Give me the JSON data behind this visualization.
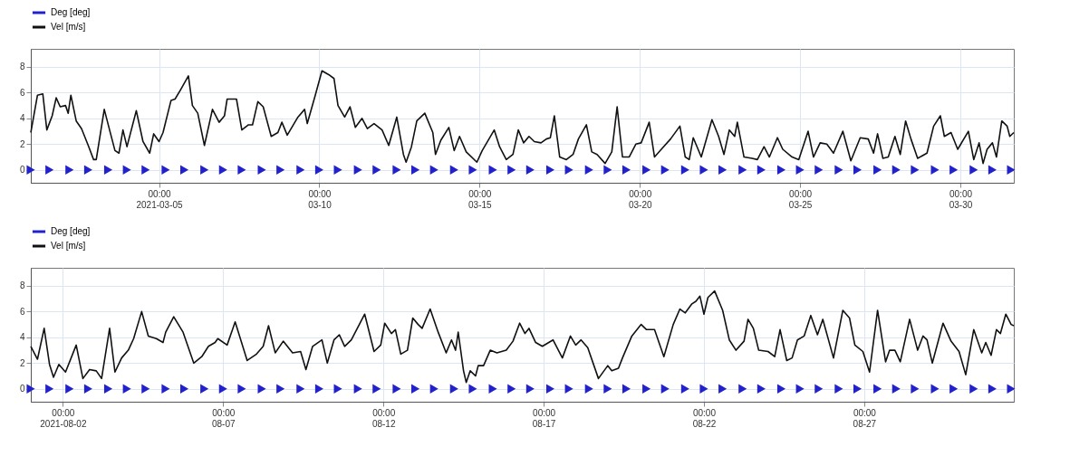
{
  "chart_data": [
    {
      "type": "line",
      "legend": "top left",
      "grid": true,
      "xlim": [
        "2021-03-01T00:00",
        "2021-03-31T16:00"
      ],
      "xticks": [
        {
          "value": "2021-03-05T00:00",
          "label": "00:00\n2021-03-05"
        },
        {
          "value": "2021-03-10T00:00",
          "label": "00:00\n03-10"
        },
        {
          "value": "2021-03-15T00:00",
          "label": "00:00\n03-15"
        },
        {
          "value": "2021-03-20T00:00",
          "label": "00:00\n03-20"
        },
        {
          "value": "2021-03-25T00:00",
          "label": "00:00\n03-25"
        },
        {
          "value": "2021-03-30T00:00",
          "label": "00:00\n03-30"
        }
      ],
      "ylim": [
        -1,
        9.4
      ],
      "yticks": [
        0,
        2,
        4,
        6,
        8
      ],
      "series": [
        {
          "name": "Deg [deg]",
          "type": "scatter",
          "marker": "triangle",
          "color": "#2222cc",
          "x": [
            "2021-03-01T00:00",
            "2021-03-01T14:00",
            "2021-03-02T05:00",
            "2021-03-02T19:00",
            "2021-03-03T10:00",
            "2021-03-04T00:00",
            "2021-03-04T14:00",
            "2021-03-05T05:00",
            "2021-03-05T19:00",
            "2021-03-06T10:00",
            "2021-03-07T00:00",
            "2021-03-07T14:00",
            "2021-03-08T05:00",
            "2021-03-08T19:00",
            "2021-03-09T10:00",
            "2021-03-10T00:00",
            "2021-03-10T14:00",
            "2021-03-11T05:00",
            "2021-03-11T19:00",
            "2021-03-12T10:00",
            "2021-03-13T00:00",
            "2021-03-13T14:00",
            "2021-03-14T05:00",
            "2021-03-14T19:00",
            "2021-03-15T10:00",
            "2021-03-16T00:00",
            "2021-03-16T14:00",
            "2021-03-17T05:00",
            "2021-03-17T19:00",
            "2021-03-18T10:00",
            "2021-03-19T00:00",
            "2021-03-19T14:00",
            "2021-03-20T05:00",
            "2021-03-20T19:00",
            "2021-03-21T10:00",
            "2021-03-22T00:00",
            "2021-03-22T14:00",
            "2021-03-23T05:00",
            "2021-03-23T19:00",
            "2021-03-24T10:00",
            "2021-03-25T00:00",
            "2021-03-25T14:00",
            "2021-03-26T05:00",
            "2021-03-26T19:00",
            "2021-03-27T10:00",
            "2021-03-28T00:00",
            "2021-03-28T14:00",
            "2021-03-29T05:00",
            "2021-03-29T19:00",
            "2021-03-30T10:00",
            "2021-03-31T00:00",
            "2021-03-31T14:00"
          ],
          "values": [
            0,
            0,
            0,
            0,
            0,
            0,
            0,
            0,
            0,
            0,
            0,
            0,
            0,
            0,
            0,
            0,
            0,
            0,
            0,
            0,
            0,
            0,
            0,
            0,
            0,
            0,
            0,
            0,
            0,
            0,
            0,
            0,
            0,
            0,
            0,
            0,
            0,
            0,
            0,
            0,
            0,
            0,
            0,
            0,
            0,
            0,
            0,
            0,
            0,
            0,
            0,
            0
          ]
        },
        {
          "name": "Vel [m/s]",
          "type": "line",
          "color": "#111111",
          "x": [
            "2021-03-01T00:00",
            "2021-03-01T05:00",
            "2021-03-01T09:00",
            "2021-03-01T12:00",
            "2021-03-01T16:00",
            "2021-03-01T19:00",
            "2021-03-01T22:00",
            "2021-03-02T02:00",
            "2021-03-02T04:00",
            "2021-03-02T06:00",
            "2021-03-02T10:00",
            "2021-03-02T14:00",
            "2021-03-02T19:00",
            "2021-03-02T23:00",
            "2021-03-03T01:00",
            "2021-03-03T07:00",
            "2021-03-03T12:00",
            "2021-03-03T15:00",
            "2021-03-03T18:00",
            "2021-03-03T21:00",
            "2021-03-04T00:00",
            "2021-03-04T07:00",
            "2021-03-04T12:00",
            "2021-03-04T17:00",
            "2021-03-04T20:00",
            "2021-03-05T00:00",
            "2021-03-05T03:00",
            "2021-03-05T09:00",
            "2021-03-05T12:00",
            "2021-03-05T16:00",
            "2021-03-05T22:00",
            "2021-03-06T01:00",
            "2021-03-06T05:00",
            "2021-03-06T10:00",
            "2021-03-06T16:00",
            "2021-03-06T21:00",
            "2021-03-07T01:00",
            "2021-03-07T03:00",
            "2021-03-07T10:00",
            "2021-03-07T14:00",
            "2021-03-07T19:00",
            "2021-03-07T22:00",
            "2021-03-08T02:00",
            "2021-03-08T06:00",
            "2021-03-08T12:00",
            "2021-03-08T17:00",
            "2021-03-08T20:00",
            "2021-03-09T00:00",
            "2021-03-09T08:00",
            "2021-03-09T13:00",
            "2021-03-09T15:00",
            "2021-03-09T21:00",
            "2021-03-10T02:00",
            "2021-03-10T07:00",
            "2021-03-10T11:00",
            "2021-03-10T14:00",
            "2021-03-10T19:00",
            "2021-03-10T23:00",
            "2021-03-11T03:00",
            "2021-03-11T08:00",
            "2021-03-11T12:00",
            "2021-03-11T17:00",
            "2021-03-11T23:00",
            "2021-03-12T04:00",
            "2021-03-12T10:00",
            "2021-03-12T15:00",
            "2021-03-12T17:00",
            "2021-03-12T21:00",
            "2021-03-13T01:00",
            "2021-03-13T07:00",
            "2021-03-13T13:00",
            "2021-03-13T15:00",
            "2021-03-13T19:00",
            "2021-03-14T01:00",
            "2021-03-14T05:00",
            "2021-03-14T09:00",
            "2021-03-14T14:00",
            "2021-03-14T22:00",
            "2021-03-15T02:00",
            "2021-03-15T11:00",
            "2021-03-15T15:00",
            "2021-03-15T20:00",
            "2021-03-16T01:00",
            "2021-03-16T05:00",
            "2021-03-16T09:00",
            "2021-03-16T13:00",
            "2021-03-16T17:00",
            "2021-03-16T22:00",
            "2021-03-17T02:00",
            "2021-03-17T05:00",
            "2021-03-17T08:00",
            "2021-03-17T12:00",
            "2021-03-17T17:00",
            "2021-03-17T22:00",
            "2021-03-18T02:00",
            "2021-03-18T08:00",
            "2021-03-18T12:00",
            "2021-03-18T16:00",
            "2021-03-18T22:00",
            "2021-03-19T03:00",
            "2021-03-19T07:00",
            "2021-03-19T11:00",
            "2021-03-19T16:00",
            "2021-03-19T21:00",
            "2021-03-20T01:00",
            "2021-03-20T07:00",
            "2021-03-20T11:00",
            "2021-03-20T17:00",
            "2021-03-20T23:00",
            "2021-03-21T06:00",
            "2021-03-21T10:00",
            "2021-03-21T13:00",
            "2021-03-21T16:00",
            "2021-03-21T22:00",
            "2021-03-22T06:00",
            "2021-03-22T11:00",
            "2021-03-22T15:00",
            "2021-03-22T19:00",
            "2021-03-22T23:00",
            "2021-03-23T01:00",
            "2021-03-23T06:00",
            "2021-03-23T12:00",
            "2021-03-23T16:00",
            "2021-03-23T21:00",
            "2021-03-24T01:00",
            "2021-03-24T07:00",
            "2021-03-24T11:00",
            "2021-03-24T18:00",
            "2021-03-24T23:00",
            "2021-03-25T06:00",
            "2021-03-25T10:00",
            "2021-03-25T15:00",
            "2021-03-25T20:00",
            "2021-03-26T01:00",
            "2021-03-26T08:00",
            "2021-03-26T14:00",
            "2021-03-26T21:00",
            "2021-03-27T03:00",
            "2021-03-27T07:00",
            "2021-03-27T10:00",
            "2021-03-27T14:00",
            "2021-03-27T18:00",
            "2021-03-27T23:00",
            "2021-03-28T03:00",
            "2021-03-28T07:00",
            "2021-03-28T11:00",
            "2021-03-28T16:00",
            "2021-03-28T23:00",
            "2021-03-29T04:00",
            "2021-03-29T09:00",
            "2021-03-29T12:00",
            "2021-03-29T17:00",
            "2021-03-29T22:00",
            "2021-03-30T06:00",
            "2021-03-30T10:00",
            "2021-03-30T14:00",
            "2021-03-30T17:00",
            "2021-03-30T20:00",
            "2021-03-31T00:00",
            "2021-03-31T03:00",
            "2021-03-31T07:00",
            "2021-03-31T11:00",
            "2021-03-31T13:00",
            "2021-03-31T16:00"
          ],
          "values": [
            2.9,
            5.8,
            5.9,
            3.1,
            4.2,
            5.6,
            4.9,
            5.0,
            4.4,
            5.8,
            3.8,
            3.2,
            1.9,
            0.8,
            0.8,
            4.7,
            2.7,
            1.5,
            1.3,
            3.1,
            1.8,
            4.6,
            2.2,
            1.3,
            2.8,
            2.2,
            2.9,
            5.4,
            5.5,
            6.2,
            7.3,
            5.0,
            4.4,
            1.9,
            4.7,
            3.7,
            4.2,
            5.5,
            5.5,
            3.1,
            3.5,
            3.5,
            5.3,
            4.9,
            2.6,
            2.9,
            3.7,
            2.7,
            4.1,
            4.7,
            3.6,
            5.8,
            7.7,
            7.4,
            7.1,
            5.0,
            4.1,
            4.9,
            3.3,
            4.0,
            3.2,
            3.6,
            3.1,
            1.9,
            4.1,
            1.2,
            0.6,
            1.8,
            3.8,
            4.4,
            2.9,
            1.2,
            2.3,
            3.3,
            1.5,
            2.6,
            1.4,
            0.6,
            1.5,
            3.1,
            1.8,
            0.8,
            1.2,
            3.1,
            2.1,
            2.6,
            2.2,
            2.1,
            2.4,
            2.5,
            4.2,
            1.0,
            0.8,
            1.2,
            2.4,
            3.5,
            1.4,
            1.2,
            0.5,
            1.4,
            4.9,
            1.0,
            1.0,
            2.0,
            2.1,
            3.7,
            1.0,
            1.7,
            2.4,
            3.4,
            1.0,
            0.8,
            2.5,
            1.0,
            3.9,
            2.6,
            1.2,
            3.1,
            2.6,
            3.7,
            1.0,
            0.9,
            0.8,
            1.8,
            1.0,
            2.5,
            1.6,
            1.0,
            0.8,
            3.0,
            1.0,
            2.1,
            2.0,
            1.3,
            3.0,
            0.7,
            2.5,
            2.4,
            1.3,
            2.8,
            0.9,
            1.0,
            2.6,
            1.2,
            3.8,
            2.4,
            0.9,
            1.3,
            3.4,
            4.2,
            2.6,
            2.9,
            1.6,
            3.0,
            0.8,
            2.1,
            0.5,
            1.6,
            2.1,
            1.0,
            3.8,
            3.4,
            2.6,
            2.9
          ]
        }
      ]
    },
    {
      "type": "line",
      "legend": "top left",
      "grid": true,
      "xlim": [
        "2021-08-01T00:00",
        "2021-08-31T16:00"
      ],
      "xticks": [
        {
          "value": "2021-08-02T00:00",
          "label": "00:00\n2021-08-02"
        },
        {
          "value": "2021-08-07T00:00",
          "label": "00:00\n08-07"
        },
        {
          "value": "2021-08-12T00:00",
          "label": "00:00\n08-12"
        },
        {
          "value": "2021-08-17T00:00",
          "label": "00:00\n08-17"
        },
        {
          "value": "2021-08-22T00:00",
          "label": "00:00\n08-22"
        },
        {
          "value": "2021-08-27T00:00",
          "label": "00:00\n08-27"
        }
      ],
      "ylim": [
        -1,
        9.4
      ],
      "yticks": [
        0,
        2,
        4,
        6,
        8
      ],
      "series": [
        {
          "name": "Deg [deg]",
          "type": "scatter",
          "marker": "triangle",
          "color": "#2222cc",
          "x": [
            "2021-08-01T00:00",
            "2021-08-01T14:00",
            "2021-08-02T05:00",
            "2021-08-02T19:00",
            "2021-08-03T10:00",
            "2021-08-04T00:00",
            "2021-08-04T14:00",
            "2021-08-05T05:00",
            "2021-08-05T19:00",
            "2021-08-06T10:00",
            "2021-08-07T00:00",
            "2021-08-07T14:00",
            "2021-08-08T05:00",
            "2021-08-08T19:00",
            "2021-08-09T10:00",
            "2021-08-10T00:00",
            "2021-08-10T14:00",
            "2021-08-11T05:00",
            "2021-08-11T19:00",
            "2021-08-12T10:00",
            "2021-08-13T00:00",
            "2021-08-13T14:00",
            "2021-08-14T05:00",
            "2021-08-14T19:00",
            "2021-08-15T10:00",
            "2021-08-16T00:00",
            "2021-08-16T14:00",
            "2021-08-17T05:00",
            "2021-08-17T19:00",
            "2021-08-18T10:00",
            "2021-08-19T00:00",
            "2021-08-19T14:00",
            "2021-08-20T05:00",
            "2021-08-20T19:00",
            "2021-08-21T10:00",
            "2021-08-22T00:00",
            "2021-08-22T14:00",
            "2021-08-23T05:00",
            "2021-08-23T19:00",
            "2021-08-24T10:00",
            "2021-08-25T00:00",
            "2021-08-25T14:00",
            "2021-08-26T05:00",
            "2021-08-26T19:00",
            "2021-08-27T10:00",
            "2021-08-28T00:00",
            "2021-08-28T14:00",
            "2021-08-29T05:00",
            "2021-08-29T19:00",
            "2021-08-30T10:00",
            "2021-08-31T00:00",
            "2021-08-31T14:00"
          ],
          "values": [
            0,
            0,
            0,
            0,
            0,
            0,
            0,
            0,
            0,
            0,
            0,
            0,
            0,
            0,
            0,
            0,
            0,
            0,
            0,
            0,
            0,
            0,
            0,
            0,
            0,
            0,
            0,
            0,
            0,
            0,
            0,
            0,
            0,
            0,
            0,
            0,
            0,
            0,
            0,
            0,
            0,
            0,
            0,
            0,
            0,
            0,
            0,
            0,
            0,
            0,
            0,
            0
          ]
        },
        {
          "name": "Vel [m/s]",
          "type": "line",
          "color": "#111111",
          "x": [
            "2021-08-01T00:00",
            "2021-08-01T05:00",
            "2021-08-01T10:00",
            "2021-08-01T14:00",
            "2021-08-01T17:00",
            "2021-08-01T21:00",
            "2021-08-02T02:00",
            "2021-08-02T10:00",
            "2021-08-02T15:00",
            "2021-08-02T20:00",
            "2021-08-03T01:00",
            "2021-08-03T05:00",
            "2021-08-03T11:00",
            "2021-08-03T15:00",
            "2021-08-03T20:00",
            "2021-08-04T01:00",
            "2021-08-04T05:00",
            "2021-08-04T11:00",
            "2021-08-04T16:00",
            "2021-08-04T22:00",
            "2021-08-05T03:00",
            "2021-08-05T05:00",
            "2021-08-05T11:00",
            "2021-08-05T18:00",
            "2021-08-06T02:00",
            "2021-08-06T08:00",
            "2021-08-06T13:00",
            "2021-08-06T18:00",
            "2021-08-06T20:00",
            "2021-08-07T03:00",
            "2021-08-07T09:00",
            "2021-08-07T18:00",
            "2021-08-08T01:00",
            "2021-08-08T06:00",
            "2021-08-08T10:00",
            "2021-08-08T15:00",
            "2021-08-08T21:00",
            "2021-08-09T04:00",
            "2021-08-09T10:00",
            "2021-08-09T14:00",
            "2021-08-09T19:00",
            "2021-08-10T02:00",
            "2021-08-10T06:00",
            "2021-08-10T11:00",
            "2021-08-10T15:00",
            "2021-08-10T19:00",
            "2021-08-11T00:00",
            "2021-08-11T05:00",
            "2021-08-11T10:00",
            "2021-08-11T17:00",
            "2021-08-11T22:00",
            "2021-08-12T01:00",
            "2021-08-12T06:00",
            "2021-08-12T09:00",
            "2021-08-12T13:00",
            "2021-08-12T18:00",
            "2021-08-12T22:00",
            "2021-08-13T02:00",
            "2021-08-13T05:00",
            "2021-08-13T11:00",
            "2021-08-13T17:00",
            "2021-08-13T23:00",
            "2021-08-14T03:00",
            "2021-08-14T06:00",
            "2021-08-14T08:00",
            "2021-08-14T12:00",
            "2021-08-14T14:00",
            "2021-08-14T17:00",
            "2021-08-14T21:00",
            "2021-08-14T23:00",
            "2021-08-15T03:00",
            "2021-08-15T08:00",
            "2021-08-15T13:00",
            "2021-08-15T20:00",
            "2021-08-16T01:00",
            "2021-08-16T06:00",
            "2021-08-16T10:00",
            "2021-08-16T13:00",
            "2021-08-16T18:00",
            "2021-08-16T23:00",
            "2021-08-17T07:00",
            "2021-08-17T14:00",
            "2021-08-17T20:00",
            "2021-08-18T00:00",
            "2021-08-18T04:00",
            "2021-08-18T09:00",
            "2021-08-18T17:00",
            "2021-08-19T00:00",
            "2021-08-19T03:00",
            "2021-08-19T08:00",
            "2021-08-19T11:00",
            "2021-08-19T18:00",
            "2021-08-20T01:00",
            "2021-08-20T05:00",
            "2021-08-20T11:00",
            "2021-08-20T18:00",
            "2021-08-21T01:00",
            "2021-08-21T06:00",
            "2021-08-21T10:00",
            "2021-08-21T15:00",
            "2021-08-21T18:00",
            "2021-08-21T21:00",
            "2021-08-22T00:00",
            "2021-08-22T03:00",
            "2021-08-22T08:00",
            "2021-08-22T14:00",
            "2021-08-22T19:00",
            "2021-08-23T00:00",
            "2021-08-23T06:00",
            "2021-08-23T09:00",
            "2021-08-23T13:00",
            "2021-08-23T17:00",
            "2021-08-24T00:00",
            "2021-08-24T05:00",
            "2021-08-24T09:00",
            "2021-08-24T14:00",
            "2021-08-24T18:00",
            "2021-08-24T22:00",
            "2021-08-25T03:00",
            "2021-08-25T08:00",
            "2021-08-25T13:00",
            "2021-08-25T17:00",
            "2021-08-26T01:00",
            "2021-08-26T08:00",
            "2021-08-26T13:00",
            "2021-08-26T17:00",
            "2021-08-26T23:00",
            "2021-08-27T04:00",
            "2021-08-27T10:00",
            "2021-08-27T16:00",
            "2021-08-27T19:00",
            "2021-08-27T23:00",
            "2021-08-28T03:00",
            "2021-08-28T10:00",
            "2021-08-28T16:00",
            "2021-08-28T20:00",
            "2021-08-28T23:00",
            "2021-08-29T03:00",
            "2021-08-29T11:00",
            "2021-08-29T17:00",
            "2021-08-29T23:00",
            "2021-08-30T04:00",
            "2021-08-30T10:00",
            "2021-08-30T16:00",
            "2021-08-30T19:00",
            "2021-08-30T23:00",
            "2021-08-31T03:00",
            "2021-08-31T06:00",
            "2021-08-31T10:00",
            "2021-08-31T14:00",
            "2021-08-31T16:00"
          ],
          "values": [
            3.3,
            2.3,
            4.7,
            1.9,
            0.9,
            1.9,
            1.3,
            3.4,
            0.8,
            1.5,
            1.4,
            0.8,
            4.7,
            1.3,
            2.4,
            3.0,
            3.9,
            6.0,
            4.1,
            3.9,
            3.6,
            4.4,
            5.6,
            4.4,
            2.0,
            2.5,
            3.3,
            3.6,
            3.9,
            3.4,
            5.2,
            2.2,
            2.7,
            3.3,
            4.9,
            2.8,
            3.7,
            2.8,
            2.9,
            1.5,
            3.3,
            3.8,
            2.0,
            3.8,
            4.2,
            3.3,
            3.8,
            4.8,
            5.8,
            2.9,
            3.4,
            5.1,
            4.3,
            4.6,
            2.7,
            3.0,
            5.5,
            5.0,
            4.7,
            6.2,
            4.4,
            2.8,
            3.8,
            3.0,
            4.4,
            1.4,
            0.5,
            1.4,
            1.0,
            1.8,
            1.8,
            3.0,
            2.8,
            3.0,
            3.7,
            5.1,
            4.3,
            4.7,
            3.6,
            3.3,
            3.8,
            2.4,
            4.1,
            3.4,
            3.8,
            3.2,
            0.8,
            1.8,
            1.4,
            1.6,
            2.4,
            4.1,
            5.0,
            4.6,
            4.6,
            2.5,
            5.0,
            6.2,
            5.9,
            6.6,
            6.8,
            7.2,
            5.8,
            7.1,
            7.6,
            6.1,
            3.8,
            3.0,
            3.7,
            5.4,
            4.7,
            3.0,
            2.9,
            2.5,
            4.6,
            2.2,
            2.4,
            3.8,
            4.1,
            5.7,
            4.2,
            5.4,
            2.4,
            6.1,
            5.5,
            3.4,
            2.9,
            1.3,
            6.1,
            2.1,
            3.0,
            3.0,
            2.1,
            5.4,
            3.0,
            4.1,
            3.8,
            2.0,
            5.1,
            3.7,
            2.9,
            1.1,
            4.6,
            2.8,
            3.6,
            2.6,
            4.6,
            4.3,
            5.8,
            5.0,
            4.9
          ]
        }
      ]
    }
  ]
}
